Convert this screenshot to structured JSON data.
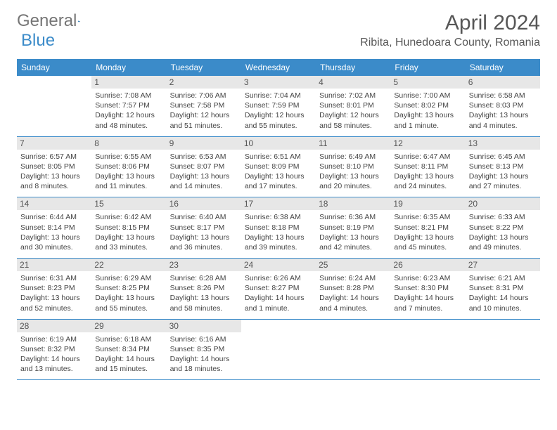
{
  "logo": {
    "text1": "General",
    "text2": "Blue"
  },
  "title": "April 2024",
  "location": "Ribita, Hunedoara County, Romania",
  "colors": {
    "header_bg": "#3b8bc9",
    "daynum_bg": "#e7e7e7",
    "text": "#444444",
    "title_text": "#575757",
    "logo_gray": "#767676",
    "logo_blue": "#3b8bc9"
  },
  "day_names": [
    "Sunday",
    "Monday",
    "Tuesday",
    "Wednesday",
    "Thursday",
    "Friday",
    "Saturday"
  ],
  "weeks": [
    [
      {
        "n": "",
        "lines": []
      },
      {
        "n": "1",
        "lines": [
          "Sunrise: 7:08 AM",
          "Sunset: 7:57 PM",
          "Daylight: 12 hours",
          "and 48 minutes."
        ]
      },
      {
        "n": "2",
        "lines": [
          "Sunrise: 7:06 AM",
          "Sunset: 7:58 PM",
          "Daylight: 12 hours",
          "and 51 minutes."
        ]
      },
      {
        "n": "3",
        "lines": [
          "Sunrise: 7:04 AM",
          "Sunset: 7:59 PM",
          "Daylight: 12 hours",
          "and 55 minutes."
        ]
      },
      {
        "n": "4",
        "lines": [
          "Sunrise: 7:02 AM",
          "Sunset: 8:01 PM",
          "Daylight: 12 hours",
          "and 58 minutes."
        ]
      },
      {
        "n": "5",
        "lines": [
          "Sunrise: 7:00 AM",
          "Sunset: 8:02 PM",
          "Daylight: 13 hours",
          "and 1 minute."
        ]
      },
      {
        "n": "6",
        "lines": [
          "Sunrise: 6:58 AM",
          "Sunset: 8:03 PM",
          "Daylight: 13 hours",
          "and 4 minutes."
        ]
      }
    ],
    [
      {
        "n": "7",
        "lines": [
          "Sunrise: 6:57 AM",
          "Sunset: 8:05 PM",
          "Daylight: 13 hours",
          "and 8 minutes."
        ]
      },
      {
        "n": "8",
        "lines": [
          "Sunrise: 6:55 AM",
          "Sunset: 8:06 PM",
          "Daylight: 13 hours",
          "and 11 minutes."
        ]
      },
      {
        "n": "9",
        "lines": [
          "Sunrise: 6:53 AM",
          "Sunset: 8:07 PM",
          "Daylight: 13 hours",
          "and 14 minutes."
        ]
      },
      {
        "n": "10",
        "lines": [
          "Sunrise: 6:51 AM",
          "Sunset: 8:09 PM",
          "Daylight: 13 hours",
          "and 17 minutes."
        ]
      },
      {
        "n": "11",
        "lines": [
          "Sunrise: 6:49 AM",
          "Sunset: 8:10 PM",
          "Daylight: 13 hours",
          "and 20 minutes."
        ]
      },
      {
        "n": "12",
        "lines": [
          "Sunrise: 6:47 AM",
          "Sunset: 8:11 PM",
          "Daylight: 13 hours",
          "and 24 minutes."
        ]
      },
      {
        "n": "13",
        "lines": [
          "Sunrise: 6:45 AM",
          "Sunset: 8:13 PM",
          "Daylight: 13 hours",
          "and 27 minutes."
        ]
      }
    ],
    [
      {
        "n": "14",
        "lines": [
          "Sunrise: 6:44 AM",
          "Sunset: 8:14 PM",
          "Daylight: 13 hours",
          "and 30 minutes."
        ]
      },
      {
        "n": "15",
        "lines": [
          "Sunrise: 6:42 AM",
          "Sunset: 8:15 PM",
          "Daylight: 13 hours",
          "and 33 minutes."
        ]
      },
      {
        "n": "16",
        "lines": [
          "Sunrise: 6:40 AM",
          "Sunset: 8:17 PM",
          "Daylight: 13 hours",
          "and 36 minutes."
        ]
      },
      {
        "n": "17",
        "lines": [
          "Sunrise: 6:38 AM",
          "Sunset: 8:18 PM",
          "Daylight: 13 hours",
          "and 39 minutes."
        ]
      },
      {
        "n": "18",
        "lines": [
          "Sunrise: 6:36 AM",
          "Sunset: 8:19 PM",
          "Daylight: 13 hours",
          "and 42 minutes."
        ]
      },
      {
        "n": "19",
        "lines": [
          "Sunrise: 6:35 AM",
          "Sunset: 8:21 PM",
          "Daylight: 13 hours",
          "and 45 minutes."
        ]
      },
      {
        "n": "20",
        "lines": [
          "Sunrise: 6:33 AM",
          "Sunset: 8:22 PM",
          "Daylight: 13 hours",
          "and 49 minutes."
        ]
      }
    ],
    [
      {
        "n": "21",
        "lines": [
          "Sunrise: 6:31 AM",
          "Sunset: 8:23 PM",
          "Daylight: 13 hours",
          "and 52 minutes."
        ]
      },
      {
        "n": "22",
        "lines": [
          "Sunrise: 6:29 AM",
          "Sunset: 8:25 PM",
          "Daylight: 13 hours",
          "and 55 minutes."
        ]
      },
      {
        "n": "23",
        "lines": [
          "Sunrise: 6:28 AM",
          "Sunset: 8:26 PM",
          "Daylight: 13 hours",
          "and 58 minutes."
        ]
      },
      {
        "n": "24",
        "lines": [
          "Sunrise: 6:26 AM",
          "Sunset: 8:27 PM",
          "Daylight: 14 hours",
          "and 1 minute."
        ]
      },
      {
        "n": "25",
        "lines": [
          "Sunrise: 6:24 AM",
          "Sunset: 8:28 PM",
          "Daylight: 14 hours",
          "and 4 minutes."
        ]
      },
      {
        "n": "26",
        "lines": [
          "Sunrise: 6:23 AM",
          "Sunset: 8:30 PM",
          "Daylight: 14 hours",
          "and 7 minutes."
        ]
      },
      {
        "n": "27",
        "lines": [
          "Sunrise: 6:21 AM",
          "Sunset: 8:31 PM",
          "Daylight: 14 hours",
          "and 10 minutes."
        ]
      }
    ],
    [
      {
        "n": "28",
        "lines": [
          "Sunrise: 6:19 AM",
          "Sunset: 8:32 PM",
          "Daylight: 14 hours",
          "and 13 minutes."
        ]
      },
      {
        "n": "29",
        "lines": [
          "Sunrise: 6:18 AM",
          "Sunset: 8:34 PM",
          "Daylight: 14 hours",
          "and 15 minutes."
        ]
      },
      {
        "n": "30",
        "lines": [
          "Sunrise: 6:16 AM",
          "Sunset: 8:35 PM",
          "Daylight: 14 hours",
          "and 18 minutes."
        ]
      },
      {
        "n": "",
        "lines": []
      },
      {
        "n": "",
        "lines": []
      },
      {
        "n": "",
        "lines": []
      },
      {
        "n": "",
        "lines": []
      }
    ]
  ]
}
